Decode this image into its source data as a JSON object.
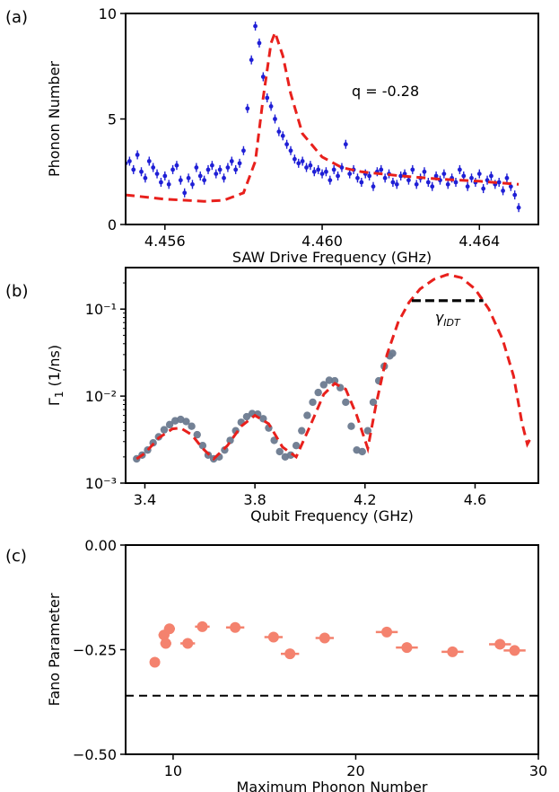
{
  "chart_data": [
    {
      "panel_label": "(a)",
      "type": "scatter",
      "xlabel": "SAW Drive Frequency (GHz)",
      "ylabel": "Phonon Number",
      "xlim": [
        4.455,
        4.4655
      ],
      "ylim": [
        0,
        10
      ],
      "xticks": [
        4.456,
        4.46,
        4.464
      ],
      "xtick_labels": [
        "4.456",
        "4.460",
        "4.464"
      ],
      "yticks": [
        0,
        5,
        10
      ],
      "ytick_labels": [
        "0",
        "5",
        "10"
      ],
      "annotation": "q = -0.28",
      "colors": {
        "data": "#1f1fd6",
        "fit": "#e8201c"
      },
      "series": [
        {
          "kind": "points_with_error",
          "x": [
            4.455,
            4.4551,
            4.4552,
            4.4553,
            4.4554,
            4.4555,
            4.4556,
            4.4557,
            4.4558,
            4.4559,
            4.456,
            4.4561,
            4.4562,
            4.4563,
            4.4564,
            4.4565,
            4.4566,
            4.4567,
            4.4568,
            4.4569,
            4.457,
            4.4571,
            4.4572,
            4.4573,
            4.4574,
            4.4575,
            4.4576,
            4.4577,
            4.4578,
            4.4579,
            4.458,
            4.4581,
            4.4582,
            4.4583,
            4.4584,
            4.4585,
            4.4586,
            4.4587,
            4.4588,
            4.4589,
            4.459,
            4.4591,
            4.4592,
            4.4593,
            4.4594,
            4.4595,
            4.4596,
            4.4597,
            4.4598,
            4.4599,
            4.46,
            4.4601,
            4.4602,
            4.4603,
            4.4604,
            4.4605,
            4.4606,
            4.4607,
            4.4608,
            4.4609,
            4.461,
            4.4611,
            4.4612,
            4.4613,
            4.4614,
            4.4615,
            4.4616,
            4.4617,
            4.4618,
            4.4619,
            4.462,
            4.4621,
            4.4622,
            4.4623,
            4.4624,
            4.4625,
            4.4626,
            4.4627,
            4.4628,
            4.4629,
            4.463,
            4.4631,
            4.4632,
            4.4633,
            4.4634,
            4.4635,
            4.4636,
            4.4637,
            4.4638,
            4.4639,
            4.464,
            4.4641,
            4.4642,
            4.4643,
            4.4644,
            4.4645,
            4.4646,
            4.4647,
            4.4648,
            4.4649,
            4.465
          ],
          "y": [
            2.9,
            3.0,
            2.6,
            3.3,
            2.5,
            2.2,
            3.0,
            2.7,
            2.4,
            2.0,
            2.3,
            1.9,
            2.6,
            2.8,
            2.1,
            1.5,
            2.2,
            1.9,
            2.7,
            2.3,
            2.1,
            2.6,
            2.8,
            2.4,
            2.6,
            2.2,
            2.7,
            3.0,
            2.6,
            2.9,
            3.5,
            5.5,
            7.8,
            9.4,
            8.6,
            7.0,
            6.0,
            5.6,
            5.0,
            4.4,
            4.2,
            3.8,
            3.5,
            3.1,
            2.9,
            3.0,
            2.7,
            2.8,
            2.5,
            2.6,
            2.4,
            2.5,
            2.1,
            2.6,
            2.3,
            2.7,
            3.8,
            2.4,
            2.6,
            2.2,
            2.0,
            2.4,
            2.3,
            1.8,
            2.5,
            2.6,
            2.2,
            2.4,
            2.0,
            1.9,
            2.3,
            2.4,
            2.1,
            2.6,
            1.9,
            2.2,
            2.5,
            2.0,
            1.8,
            2.3,
            2.1,
            2.4,
            1.9,
            2.2,
            2.0,
            2.6,
            2.3,
            1.8,
            2.2,
            2.0,
            2.4,
            1.7,
            2.1,
            2.3,
            1.9,
            2.0,
            1.6,
            2.2,
            1.8,
            1.4,
            0.8
          ]
        },
        {
          "kind": "fit",
          "x": [
            4.455,
            4.456,
            4.457,
            4.4575,
            4.458,
            4.4583,
            4.4585,
            4.4587,
            4.4588,
            4.459,
            4.4592,
            4.4595,
            4.46,
            4.4605,
            4.461,
            4.462,
            4.463,
            4.464,
            4.465
          ],
          "y": [
            1.4,
            1.2,
            1.1,
            1.15,
            1.5,
            3.0,
            6.0,
            8.6,
            9.1,
            8.0,
            6.2,
            4.3,
            3.2,
            2.7,
            2.5,
            2.3,
            2.15,
            2.05,
            1.9
          ]
        }
      ]
    },
    {
      "panel_label": "(b)",
      "type": "scatter",
      "xlabel": "Qubit Frequency (GHz)",
      "ylabel": "Γ1 (1/ns)",
      "xlim": [
        3.33,
        4.83
      ],
      "ylim": [
        0.001,
        0.3
      ],
      "yscale": "log",
      "xticks": [
        3.4,
        3.8,
        4.2,
        4.6
      ],
      "xtick_labels": [
        "3.4",
        "3.8",
        "4.2",
        "4.6"
      ],
      "yticks": [
        0.001,
        0.01,
        0.1
      ],
      "ytick_labels": [
        "10⁻³",
        "10⁻²",
        "10⁻¹"
      ],
      "annotation": "γIDT",
      "annotation_line": {
        "x": [
          4.37,
          4.63
        ],
        "y": 0.125
      },
      "colors": {
        "data": "#6b7a8f",
        "fit": "#e8201c",
        "annotation_line": "#000000"
      },
      "series": [
        {
          "kind": "points",
          "x": [
            3.37,
            3.39,
            3.41,
            3.43,
            3.45,
            3.47,
            3.49,
            3.51,
            3.53,
            3.55,
            3.57,
            3.59,
            3.61,
            3.63,
            3.65,
            3.67,
            3.69,
            3.71,
            3.73,
            3.75,
            3.77,
            3.79,
            3.81,
            3.83,
            3.85,
            3.87,
            3.89,
            3.91,
            3.93,
            3.95,
            3.97,
            3.99,
            4.01,
            4.03,
            4.05,
            4.07,
            4.09,
            4.11,
            4.13,
            4.15,
            4.17,
            4.19,
            4.21,
            4.23,
            4.25,
            4.27,
            4.29,
            4.3
          ],
          "y": [
            0.0019,
            0.0021,
            0.0024,
            0.0029,
            0.0034,
            0.0041,
            0.0047,
            0.0052,
            0.0054,
            0.0051,
            0.0045,
            0.0036,
            0.0027,
            0.0021,
            0.0019,
            0.002,
            0.0024,
            0.0031,
            0.004,
            0.005,
            0.0058,
            0.0063,
            0.0062,
            0.0055,
            0.0043,
            0.0031,
            0.0023,
            0.002,
            0.0021,
            0.0027,
            0.004,
            0.006,
            0.0085,
            0.011,
            0.0135,
            0.0152,
            0.015,
            0.0125,
            0.0085,
            0.0045,
            0.0024,
            0.0023,
            0.004,
            0.0085,
            0.015,
            0.022,
            0.029,
            0.031
          ]
        },
        {
          "kind": "fit",
          "x": [
            3.37,
            3.4,
            3.45,
            3.5,
            3.53,
            3.57,
            3.61,
            3.65,
            3.7,
            3.75,
            3.8,
            3.85,
            3.9,
            3.95,
            4.0,
            4.05,
            4.09,
            4.13,
            4.17,
            4.21,
            4.24,
            4.28,
            4.32,
            4.36,
            4.4,
            4.45,
            4.5,
            4.55,
            4.6,
            4.65,
            4.7,
            4.74,
            4.77,
            4.79,
            4.8
          ],
          "y": [
            0.0019,
            0.0022,
            0.0033,
            0.0042,
            0.0043,
            0.0036,
            0.0025,
            0.0019,
            0.0027,
            0.0045,
            0.006,
            0.0048,
            0.0026,
            0.002,
            0.0045,
            0.0105,
            0.014,
            0.012,
            0.006,
            0.0025,
            0.008,
            0.03,
            0.07,
            0.12,
            0.17,
            0.22,
            0.25,
            0.23,
            0.17,
            0.1,
            0.045,
            0.017,
            0.005,
            0.0028,
            0.0032
          ]
        }
      ]
    },
    {
      "panel_label": "(c)",
      "type": "scatter",
      "xlabel": "Maximum Phonon Number",
      "ylabel": "Fano Parameter",
      "xlim": [
        7.4,
        30
      ],
      "ylim": [
        -0.5,
        0
      ],
      "xticks": [
        10,
        20,
        30
      ],
      "xtick_labels": [
        "10",
        "20",
        "30"
      ],
      "yticks": [
        0,
        -0.25,
        -0.5
      ],
      "ytick_labels": [
        "0.00",
        "−0.25",
        "−0.50"
      ],
      "reference_line": -0.36,
      "colors": {
        "data": "#f4826e",
        "reference_line": "#000000"
      },
      "series": [
        {
          "kind": "points_with_xerror",
          "x": [
            9.0,
            9.5,
            9.8,
            9.6,
            10.8,
            11.6,
            13.4,
            15.5,
            16.4,
            18.3,
            21.7,
            22.8,
            25.3,
            27.9,
            28.7
          ],
          "y": [
            -0.28,
            -0.215,
            -0.2,
            -0.235,
            -0.235,
            -0.195,
            -0.197,
            -0.22,
            -0.26,
            -0.222,
            -0.208,
            -0.245,
            -0.255,
            -0.237,
            -0.252
          ],
          "xerr": [
            0.2,
            0.3,
            0.3,
            0.3,
            0.4,
            0.4,
            0.5,
            0.5,
            0.5,
            0.5,
            0.6,
            0.6,
            0.6,
            0.6,
            0.6
          ]
        }
      ]
    }
  ]
}
